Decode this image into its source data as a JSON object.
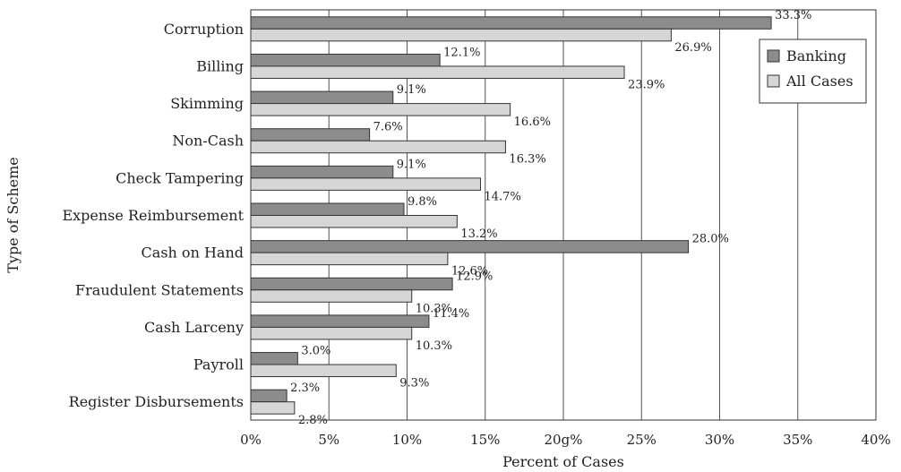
{
  "chart_data": {
    "type": "bar",
    "orientation": "horizontal",
    "categories": [
      "Corruption",
      "Billing",
      "Skimming",
      "Non-Cash",
      "Check Tampering",
      "Expense Reimbursement",
      "Cash on Hand",
      "Fraudulent Statements",
      "Cash Larceny",
      "Payroll",
      "Register Disbursements"
    ],
    "series": [
      {
        "name": "Banking",
        "color": "#8c8c8c",
        "values": [
          33.3,
          12.1,
          9.1,
          7.6,
          9.1,
          9.8,
          28.0,
          12.9,
          11.4,
          3.0,
          2.3
        ],
        "labels": [
          "33.3%",
          "12.1%",
          "9.1%",
          "7.6%",
          "9.1%",
          "9.8%",
          "28.0%",
          "12.9%",
          "11.4%",
          "3.0%",
          "2.3%"
        ]
      },
      {
        "name": "All Cases",
        "color": "#d6d6d6",
        "values": [
          26.9,
          23.9,
          16.6,
          16.3,
          14.7,
          13.2,
          12.6,
          10.3,
          10.3,
          9.3,
          2.8
        ],
        "labels": [
          "26.9%",
          "23.9%",
          "16.6%",
          "16.3%",
          "14.7%",
          "13.2%",
          "12.6%",
          "10.3%",
          "10.3%",
          "9.3%",
          "2.8%"
        ]
      }
    ],
    "xlabel": "Percent of Cases",
    "ylabel": "Type of Scheme",
    "xlim": [
      0,
      40
    ],
    "xticks": [
      0,
      5,
      10,
      15,
      20,
      25,
      30,
      35,
      40
    ],
    "xtick_labels": [
      "0%",
      "5%",
      "10%",
      "15%",
      "20g%",
      "25%",
      "30%",
      "35%",
      "40%"
    ],
    "grid": true,
    "legend_position": "top-right"
  }
}
